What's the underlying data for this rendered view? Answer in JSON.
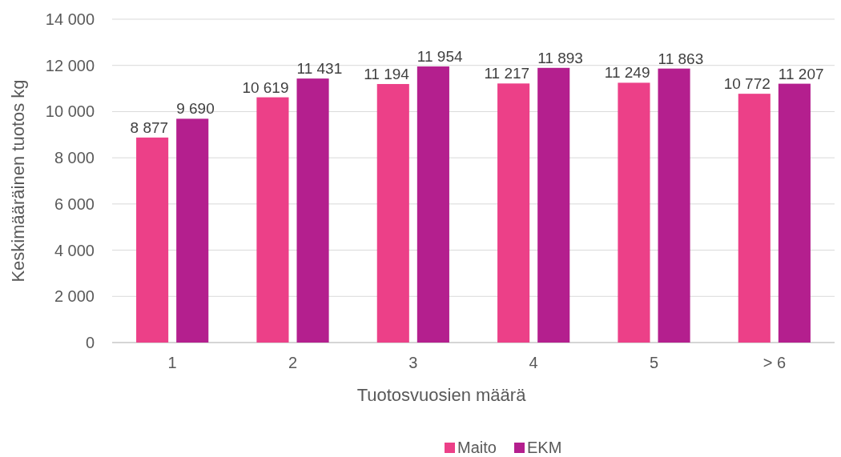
{
  "chart_data": {
    "type": "bar",
    "xlabel": "Tuotosvuosien määrä",
    "ylabel": "Keskimääräinen tuotos kg",
    "categories": [
      "1",
      "2",
      "3",
      "4",
      "5",
      "> 6"
    ],
    "series": [
      {
        "name": "Maito",
        "color": "#ec4088",
        "values": [
          8877,
          10619,
          11194,
          11217,
          11249,
          10772
        ],
        "value_labels": [
          "8 877",
          "10 619",
          "11 194",
          "11 217",
          "11 249",
          "10 772"
        ]
      },
      {
        "name": "EKM",
        "color": "#b41f8e",
        "values": [
          9690,
          11431,
          11954,
          11893,
          11863,
          11207
        ],
        "value_labels": [
          "9 690",
          "11 431",
          "11 954",
          "11 893",
          "11 863",
          "11 207"
        ]
      }
    ],
    "ylim": [
      0,
      14000
    ],
    "yticks": [
      {
        "value": 0,
        "label": "0"
      },
      {
        "value": 2000,
        "label": "2 000"
      },
      {
        "value": 4000,
        "label": "4 000"
      },
      {
        "value": 6000,
        "label": "6 000"
      },
      {
        "value": 8000,
        "label": "8 000"
      },
      {
        "value": 10000,
        "label": "10 000"
      },
      {
        "value": 12000,
        "label": "12 000"
      },
      {
        "value": 14000,
        "label": "14 000"
      }
    ],
    "grid": "y",
    "legend": "bottom"
  }
}
